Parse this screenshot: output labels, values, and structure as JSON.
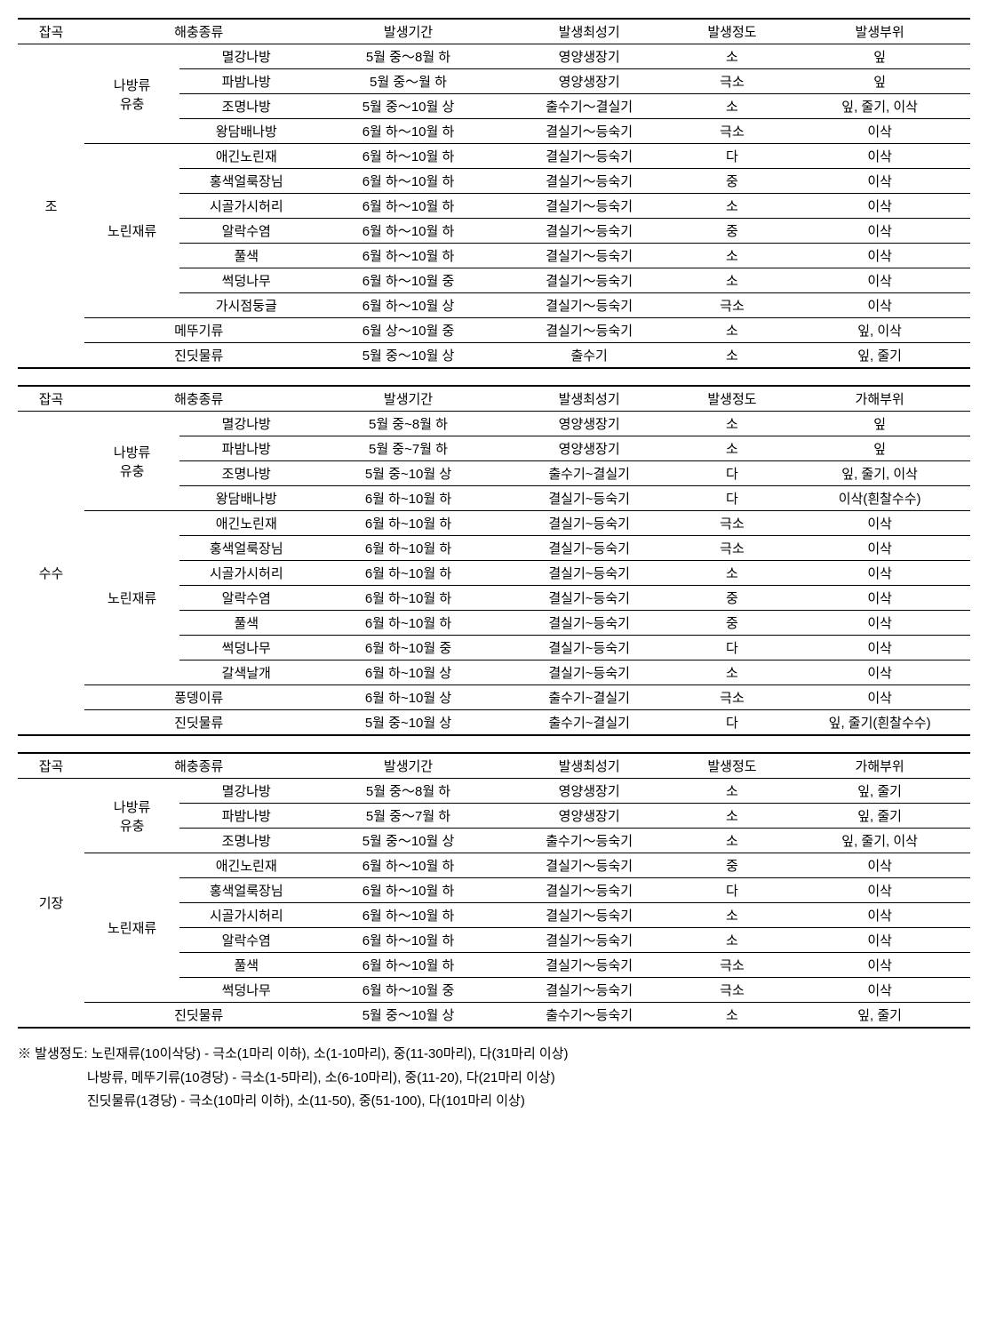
{
  "tables": [
    {
      "headers": [
        "잡곡",
        "해충종류",
        "발생기간",
        "발생최성기",
        "발생정도",
        "발생부위"
      ],
      "crop": "조",
      "groups": [
        {
          "group": "나방류 유충",
          "rows": [
            {
              "name": "멸강나방",
              "period": "5월 중～8월 하",
              "peak": "영양생장기",
              "level": "소",
              "part": "잎"
            },
            {
              "name": "파밤나방",
              "period": "5월 중～월 하",
              "peak": "영양생장기",
              "level": "극소",
              "part": "잎"
            },
            {
              "name": "조명나방",
              "period": "5월 중～10월 상",
              "peak": "출수기～결실기",
              "level": "소",
              "part": "잎, 줄기, 이삭"
            },
            {
              "name": "왕담배나방",
              "period": "6월 하～10월 하",
              "peak": "결실기～등숙기",
              "level": "극소",
              "part": "이삭"
            }
          ]
        },
        {
          "group": "노린재류",
          "rows": [
            {
              "name": "애긴노린재",
              "period": "6월 하～10월 하",
              "peak": "결실기～등숙기",
              "level": "다",
              "part": "이삭"
            },
            {
              "name": "홍색얼룩장님",
              "period": "6월 하～10월 하",
              "peak": "결실기～등숙기",
              "level": "중",
              "part": "이삭"
            },
            {
              "name": "시골가시허리",
              "period": "6월 하～10월 하",
              "peak": "결실기～등숙기",
              "level": "소",
              "part": "이삭"
            },
            {
              "name": "알락수염",
              "period": "6월 하～10월 하",
              "peak": "결실기～등숙기",
              "level": "중",
              "part": "이삭"
            },
            {
              "name": "풀색",
              "period": "6월 하～10월 하",
              "peak": "결실기～등숙기",
              "level": "소",
              "part": "이삭"
            },
            {
              "name": "썩덩나무",
              "period": "6월 하～10월 중",
              "peak": "결실기～등숙기",
              "level": "소",
              "part": "이삭"
            },
            {
              "name": "가시점둥글",
              "period": "6월 하～10월 상",
              "peak": "결실기～등숙기",
              "level": "극소",
              "part": "이삭"
            }
          ]
        },
        {
          "group": "",
          "rows": [
            {
              "name": "메뚜기류",
              "period": "6월 상～10월 중",
              "peak": "결실기～등숙기",
              "level": "소",
              "part": "잎, 이삭"
            }
          ]
        },
        {
          "group": "",
          "rows": [
            {
              "name": "진딧물류",
              "period": "5월 중～10월 상",
              "peak": "출수기",
              "level": "소",
              "part": "잎, 줄기"
            }
          ]
        }
      ]
    },
    {
      "headers": [
        "잡곡",
        "해충종류",
        "발생기간",
        "발생최성기",
        "발생정도",
        "가해부위"
      ],
      "crop": "수수",
      "groups": [
        {
          "group": "나방류 유충",
          "rows": [
            {
              "name": "멸강나방",
              "period": "5월 중~8월 하",
              "peak": "영양생장기",
              "level": "소",
              "part": "잎"
            },
            {
              "name": "파밤나방",
              "period": "5월 중~7월 하",
              "peak": "영양생장기",
              "level": "소",
              "part": "잎"
            },
            {
              "name": "조명나방",
              "period": "5월 중~10월 상",
              "peak": "출수기~결실기",
              "level": "다",
              "part": "잎, 줄기, 이삭"
            },
            {
              "name": "왕담배나방",
              "period": "6월 하~10월 하",
              "peak": "결실기~등숙기",
              "level": "다",
              "part": "이삭(흰찰수수)"
            }
          ]
        },
        {
          "group": "노린재류",
          "rows": [
            {
              "name": "애긴노린재",
              "period": "6월 하~10월 하",
              "peak": "결실기~등숙기",
              "level": "극소",
              "part": "이삭"
            },
            {
              "name": "홍색얼룩장님",
              "period": "6월 하~10월 하",
              "peak": "결실기~등숙기",
              "level": "극소",
              "part": "이삭"
            },
            {
              "name": "시골가시허리",
              "period": "6월 하~10월 하",
              "peak": "결실기~등숙기",
              "level": "소",
              "part": "이삭"
            },
            {
              "name": "알락수염",
              "period": "6월 하~10월 하",
              "peak": "결실기~등숙기",
              "level": "중",
              "part": "이삭"
            },
            {
              "name": "풀색",
              "period": "6월 하~10월 하",
              "peak": "결실기~등숙기",
              "level": "중",
              "part": "이삭"
            },
            {
              "name": "썩덩나무",
              "period": "6월 하~10월 중",
              "peak": "결실기~등숙기",
              "level": "다",
              "part": "이삭"
            },
            {
              "name": "갈색날개",
              "period": "6월 하~10월 상",
              "peak": "결실기~등숙기",
              "level": "소",
              "part": "이삭"
            }
          ]
        },
        {
          "group": "",
          "rows": [
            {
              "name": "풍뎅이류",
              "period": "6월 하~10월 상",
              "peak": "출수기~결실기",
              "level": "극소",
              "part": "이삭"
            }
          ]
        },
        {
          "group": "",
          "rows": [
            {
              "name": "진딧물류",
              "period": "5월 중~10월 상",
              "peak": "출수기~결실기",
              "level": "다",
              "part": "잎, 줄기(흰찰수수)"
            }
          ]
        }
      ]
    },
    {
      "headers": [
        "잡곡",
        "해충종류",
        "발생기간",
        "발생최성기",
        "발생정도",
        "가해부위"
      ],
      "crop": "기장",
      "groups": [
        {
          "group": "나방류 유충",
          "rows": [
            {
              "name": "멸강나방",
              "period": "5월 중～8월 하",
              "peak": "영양생장기",
              "level": "소",
              "part": "잎, 줄기"
            },
            {
              "name": "파밤나방",
              "period": "5월 중～7월 하",
              "peak": "영양생장기",
              "level": "소",
              "part": "잎, 줄기"
            },
            {
              "name": "조명나방",
              "period": "5월 중～10월 상",
              "peak": "출수기～등숙기",
              "level": "소",
              "part": "잎, 줄기, 이삭"
            }
          ]
        },
        {
          "group": "노린재류",
          "rows": [
            {
              "name": "애긴노린재",
              "period": "6월 하～10월 하",
              "peak": "결실기～등숙기",
              "level": "중",
              "part": "이삭"
            },
            {
              "name": "홍색얼룩장님",
              "period": "6월 하～10월 하",
              "peak": "결실기～등숙기",
              "level": "다",
              "part": "이삭"
            },
            {
              "name": "시골가시허리",
              "period": "6월 하～10월 하",
              "peak": "결실기～등숙기",
              "level": "소",
              "part": "이삭"
            },
            {
              "name": "알락수염",
              "period": "6월 하～10월 하",
              "peak": "결실기～등숙기",
              "level": "소",
              "part": "이삭"
            },
            {
              "name": "풀색",
              "period": "6월 하～10월 하",
              "peak": "결실기～등숙기",
              "level": "극소",
              "part": "이삭"
            },
            {
              "name": "썩덩나무",
              "period": "6월 하～10월 중",
              "peak": "결실기～등숙기",
              "level": "극소",
              "part": "이삭"
            }
          ]
        },
        {
          "group": "",
          "rows": [
            {
              "name": "진딧물류",
              "period": "5월 중～10월 상",
              "peak": "출수기～등숙기",
              "level": "소",
              "part": "잎, 줄기"
            }
          ]
        }
      ]
    }
  ],
  "footnote": {
    "line1": "※  발생정도: 노린재류(10이삭당) - 극소(1마리 이하), 소(1-10마리), 중(11-30마리), 다(31마리 이상)",
    "line2": "나방류, 메뚜기류(10경당) - 극소(1-5마리), 소(6-10마리), 중(11-20), 다(21마리 이상)",
    "line3": "진딧물류(1경당) - 극소(10마리 이하), 소(11-50), 중(51-100), 다(101마리 이상)"
  },
  "colwidths": {
    "crop": "7%",
    "group": "10%",
    "name": "14%",
    "period": "20%",
    "peak": "18%",
    "level": "12%",
    "part": "19%"
  }
}
